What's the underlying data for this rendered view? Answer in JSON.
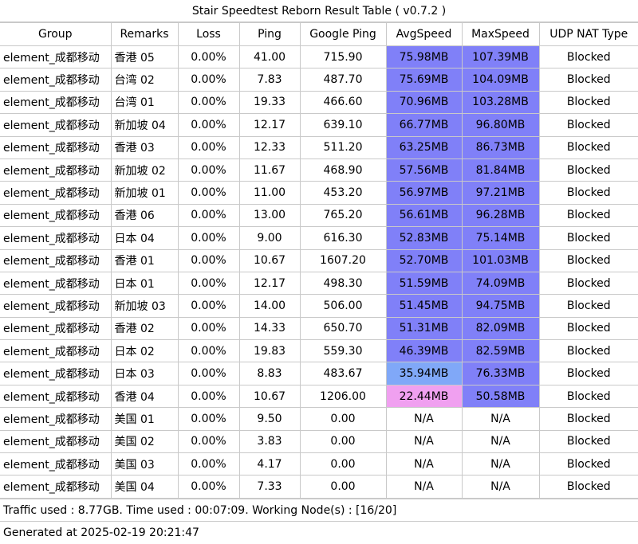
{
  "title": "Stair Speedtest Reborn Result Table ( v0.7.2 )",
  "columns": [
    "Group",
    "Remarks",
    "Loss",
    "Ping",
    "Google Ping",
    "AvgSpeed",
    "MaxSpeed",
    "UDP NAT Type"
  ],
  "rows": [
    {
      "group": "element_成都移动",
      "remarks": "香港 05",
      "loss": "0.00%",
      "ping": "41.00",
      "google_ping": "715.90",
      "avg": "75.98MB",
      "max": "107.39MB",
      "nat": "Blocked",
      "avg_color": "#8080f8",
      "max_color": "#8080f8"
    },
    {
      "group": "element_成都移动",
      "remarks": "台湾 02",
      "loss": "0.00%",
      "ping": "7.83",
      "google_ping": "487.70",
      "avg": "75.69MB",
      "max": "104.09MB",
      "nat": "Blocked",
      "avg_color": "#8080f8",
      "max_color": "#8080f8"
    },
    {
      "group": "element_成都移动",
      "remarks": "台湾 01",
      "loss": "0.00%",
      "ping": "19.33",
      "google_ping": "466.60",
      "avg": "70.96MB",
      "max": "103.28MB",
      "nat": "Blocked",
      "avg_color": "#8080f8",
      "max_color": "#8080f8"
    },
    {
      "group": "element_成都移动",
      "remarks": "新加坡 04",
      "loss": "0.00%",
      "ping": "12.17",
      "google_ping": "639.10",
      "avg": "66.77MB",
      "max": "96.80MB",
      "nat": "Blocked",
      "avg_color": "#8080f8",
      "max_color": "#8080f8"
    },
    {
      "group": "element_成都移动",
      "remarks": "香港 03",
      "loss": "0.00%",
      "ping": "12.33",
      "google_ping": "511.20",
      "avg": "63.25MB",
      "max": "86.73MB",
      "nat": "Blocked",
      "avg_color": "#8080f8",
      "max_color": "#8080f8"
    },
    {
      "group": "element_成都移动",
      "remarks": "新加坡 02",
      "loss": "0.00%",
      "ping": "11.67",
      "google_ping": "468.90",
      "avg": "57.56MB",
      "max": "81.84MB",
      "nat": "Blocked",
      "avg_color": "#8080f8",
      "max_color": "#8080f8"
    },
    {
      "group": "element_成都移动",
      "remarks": "新加坡 01",
      "loss": "0.00%",
      "ping": "11.00",
      "google_ping": "453.20",
      "avg": "56.97MB",
      "max": "97.21MB",
      "nat": "Blocked",
      "avg_color": "#8080f8",
      "max_color": "#8080f8"
    },
    {
      "group": "element_成都移动",
      "remarks": "香港 06",
      "loss": "0.00%",
      "ping": "13.00",
      "google_ping": "765.20",
      "avg": "56.61MB",
      "max": "96.28MB",
      "nat": "Blocked",
      "avg_color": "#8080f8",
      "max_color": "#8080f8"
    },
    {
      "group": "element_成都移动",
      "remarks": "日本 04",
      "loss": "0.00%",
      "ping": "9.00",
      "google_ping": "616.30",
      "avg": "52.83MB",
      "max": "75.14MB",
      "nat": "Blocked",
      "avg_color": "#8080f8",
      "max_color": "#8080f8"
    },
    {
      "group": "element_成都移动",
      "remarks": "香港 01",
      "loss": "0.00%",
      "ping": "10.67",
      "google_ping": "1607.20",
      "avg": "52.70MB",
      "max": "101.03MB",
      "nat": "Blocked",
      "avg_color": "#8080f8",
      "max_color": "#8080f8"
    },
    {
      "group": "element_成都移动",
      "remarks": "日本 01",
      "loss": "0.00%",
      "ping": "12.17",
      "google_ping": "498.30",
      "avg": "51.59MB",
      "max": "74.09MB",
      "nat": "Blocked",
      "avg_color": "#8080f8",
      "max_color": "#8080f8"
    },
    {
      "group": "element_成都移动",
      "remarks": "新加坡 03",
      "loss": "0.00%",
      "ping": "14.00",
      "google_ping": "506.00",
      "avg": "51.45MB",
      "max": "94.75MB",
      "nat": "Blocked",
      "avg_color": "#8080f8",
      "max_color": "#8080f8"
    },
    {
      "group": "element_成都移动",
      "remarks": "香港 02",
      "loss": "0.00%",
      "ping": "14.33",
      "google_ping": "650.70",
      "avg": "51.31MB",
      "max": "82.09MB",
      "nat": "Blocked",
      "avg_color": "#8080f8",
      "max_color": "#8080f8"
    },
    {
      "group": "element_成都移动",
      "remarks": "日本 02",
      "loss": "0.00%",
      "ping": "19.83",
      "google_ping": "559.30",
      "avg": "46.39MB",
      "max": "82.59MB",
      "nat": "Blocked",
      "avg_color": "#8080f8",
      "max_color": "#8080f8"
    },
    {
      "group": "element_成都移动",
      "remarks": "日本 03",
      "loss": "0.00%",
      "ping": "8.83",
      "google_ping": "483.67",
      "avg": "35.94MB",
      "max": "76.33MB",
      "nat": "Blocked",
      "avg_color": "#80a8f8",
      "max_color": "#8080f8"
    },
    {
      "group": "element_成都移动",
      "remarks": "香港 04",
      "loss": "0.00%",
      "ping": "10.67",
      "google_ping": "1206.00",
      "avg": "22.44MB",
      "max": "50.58MB",
      "nat": "Blocked",
      "avg_color": "#f0a0f0",
      "max_color": "#8080f8"
    },
    {
      "group": "element_成都移动",
      "remarks": "美国 01",
      "loss": "0.00%",
      "ping": "9.50",
      "google_ping": "0.00",
      "avg": "N/A",
      "max": "N/A",
      "nat": "Blocked",
      "avg_color": "#ffffff",
      "max_color": "#ffffff"
    },
    {
      "group": "element_成都移动",
      "remarks": "美国 02",
      "loss": "0.00%",
      "ping": "3.83",
      "google_ping": "0.00",
      "avg": "N/A",
      "max": "N/A",
      "nat": "Blocked",
      "avg_color": "#ffffff",
      "max_color": "#ffffff"
    },
    {
      "group": "element_成都移动",
      "remarks": "美国 03",
      "loss": "0.00%",
      "ping": "4.17",
      "google_ping": "0.00",
      "avg": "N/A",
      "max": "N/A",
      "nat": "Blocked",
      "avg_color": "#ffffff",
      "max_color": "#ffffff"
    },
    {
      "group": "element_成都移动",
      "remarks": "美国 04",
      "loss": "0.00%",
      "ping": "7.33",
      "google_ping": "0.00",
      "avg": "N/A",
      "max": "N/A",
      "nat": "Blocked",
      "avg_color": "#ffffff",
      "max_color": "#ffffff"
    }
  ],
  "footer": {
    "traffic": "Traffic used : 8.77GB. Time used : 00:07:09. Working Node(s) : [16/20]",
    "generated": "Generated at 2025-02-19 20:21:47"
  }
}
